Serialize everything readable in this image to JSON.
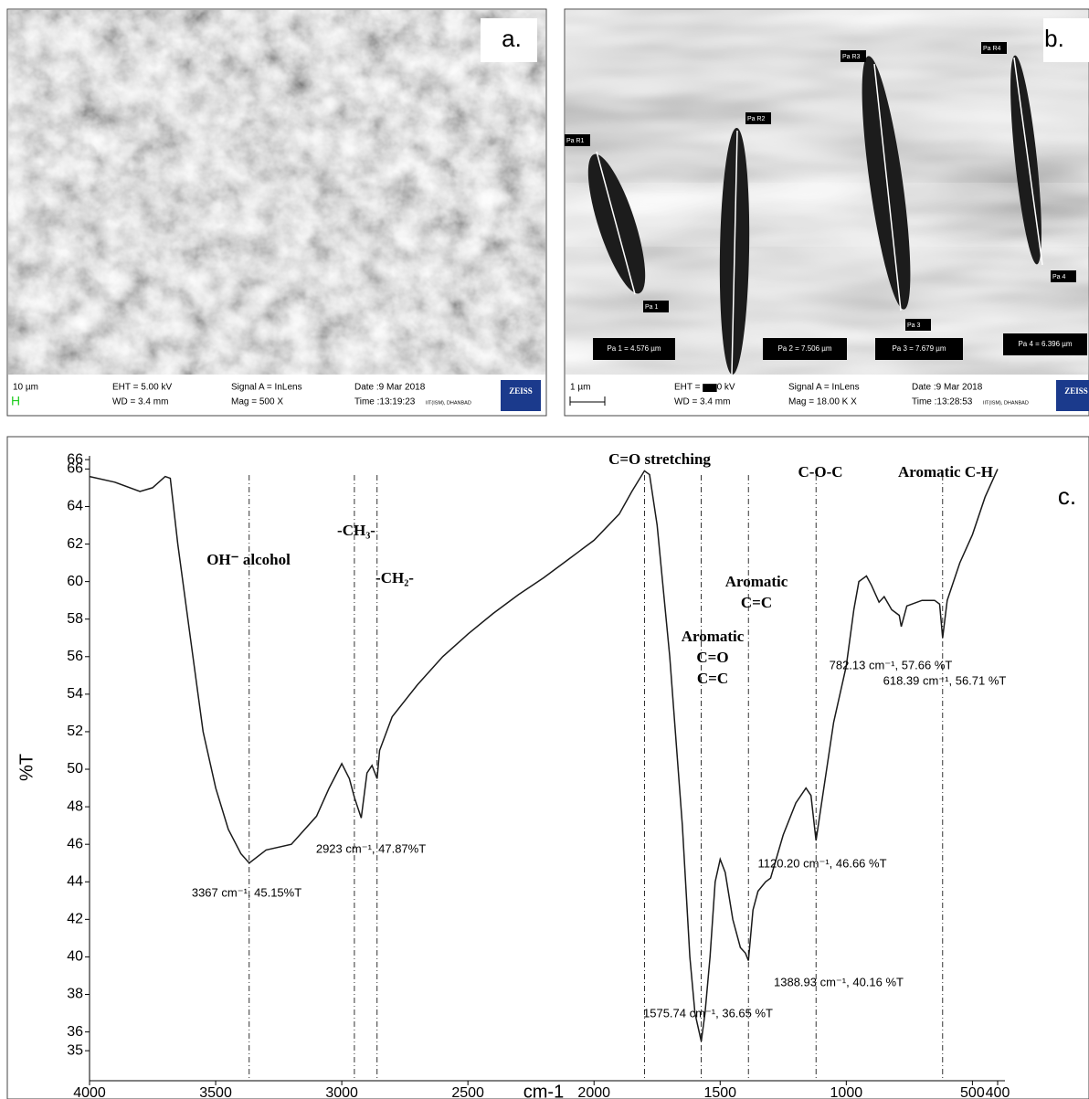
{
  "panels": [
    {
      "letter": "a.",
      "scale": "10 µm",
      "eht": "EHT = 5.00 kV",
      "wd": "WD = 3.4 mm",
      "signal": "Signal A = InLens",
      "mag": "Mag =   500 X",
      "date": "Date :9 Mar 2018",
      "time": "Time :13:19:23",
      "site": "IIT(ISM), DHANBAD",
      "brand": "ZEISS"
    },
    {
      "letter": "b.",
      "scale": "1 µm",
      "eht": "EHT = ▆▆0 kV",
      "wd": "WD = 3.4 mm",
      "signal": "Signal A = InLens",
      "mag": "Mag =  18.00 K X",
      "date": "Date :9 Mar 2018",
      "time": "Time :13:28:53",
      "site": "IIT(ISM), DHANBAD",
      "brand": "ZEISS",
      "markers": [
        "Pa R1",
        "Pa 1",
        "Pa R2",
        "Pa R3",
        "Pa 3",
        "Pa R4",
        "Pa 4"
      ],
      "measurements": [
        "Pa 1 = 4.576 µm",
        "Pa 2 = 7.506 µm",
        "Pa 3 = 7.679 µm",
        "Pa 4 = 6.396 µm"
      ]
    }
  ],
  "chart_data": {
    "type": "line",
    "panel_letter": "c.",
    "x_label": "cm-1",
    "y_label": "%T",
    "color": "#1a1a1a",
    "x": [
      4000,
      3900,
      3800,
      3750,
      3700,
      3680,
      3650,
      3600,
      3550,
      3500,
      3450,
      3400,
      3367,
      3300,
      3200,
      3100,
      3050,
      3000,
      2970,
      2950,
      2923,
      2900,
      2880,
      2860,
      2850,
      2800,
      2700,
      2600,
      2500,
      2400,
      2300,
      2200,
      2100,
      2000,
      1900,
      1850,
      1800,
      1780,
      1750,
      1700,
      1650,
      1620,
      1600,
      1575,
      1560,
      1540,
      1520,
      1500,
      1480,
      1450,
      1420,
      1400,
      1388,
      1370,
      1350,
      1320,
      1300,
      1250,
      1200,
      1160,
      1140,
      1120,
      1100,
      1050,
      1000,
      970,
      950,
      920,
      900,
      870,
      850,
      820,
      790,
      782,
      760,
      700,
      650,
      630,
      618,
      600,
      550,
      500,
      450,
      400
    ],
    "values": [
      65.6,
      65.3,
      64.8,
      65.0,
      65.6,
      65.5,
      62,
      57,
      52,
      49,
      46.8,
      45.5,
      45.0,
      45.7,
      46.0,
      47.5,
      49,
      50.3,
      49.5,
      48.5,
      47.4,
      49.8,
      50.2,
      49.5,
      51,
      52.8,
      54.5,
      56,
      57.2,
      58.3,
      59.3,
      60.2,
      61.2,
      62.2,
      63.6,
      64.8,
      65.9,
      65.7,
      63,
      56,
      47,
      40,
      37,
      35.5,
      37,
      40,
      44,
      45.2,
      44.5,
      42,
      40.5,
      40.2,
      39.8,
      42.5,
      43.5,
      44,
      44.2,
      46.5,
      48.2,
      49,
      48.6,
      46.2,
      48,
      52.5,
      55.5,
      58.5,
      60,
      60.3,
      59.8,
      58.9,
      59.2,
      58.5,
      58.2,
      57.6,
      58.7,
      59,
      59,
      58.8,
      57,
      59,
      61,
      62.5,
      64.5,
      66
    ],
    "xlim": [
      4000,
      400
    ],
    "xticks": [
      4000,
      3500,
      3000,
      2500,
      2000,
      1500,
      1000,
      500,
      400
    ],
    "ylim": [
      33.4,
      66.7
    ],
    "yticks": [
      35,
      36,
      38,
      40,
      42,
      44,
      46,
      48,
      50,
      52,
      54,
      56,
      58,
      60,
      62,
      64,
      66,
      {
        "value": 66.5,
        "label": "66"
      }
    ],
    "vlines": [
      3367,
      2950,
      2860,
      1800,
      1575,
      1388,
      1120,
      618
    ],
    "annotations": [
      "OH⁻ alcohol",
      "-CH₃-",
      "-CH₂-",
      "C=O stretching",
      [
        "Aromatic",
        "C=C"
      ],
      [
        "Aromatic",
        "C=O",
        "C=C"
      ],
      "C-O-C",
      "Aromatic  C-H",
      "3367 cm⁻¹, 45.15%T",
      "2923 cm⁻¹, 47.87%T",
      "1575.74 cm⁻¹, 36.65 %T",
      "1388.93 cm⁻¹, 40.16 %T",
      "1120.20 cm⁻¹, 46.66 %T",
      "782.13 cm⁻¹, 57.66 %T",
      "618.39 cm⁻¹, 56.71 %T"
    ]
  }
}
